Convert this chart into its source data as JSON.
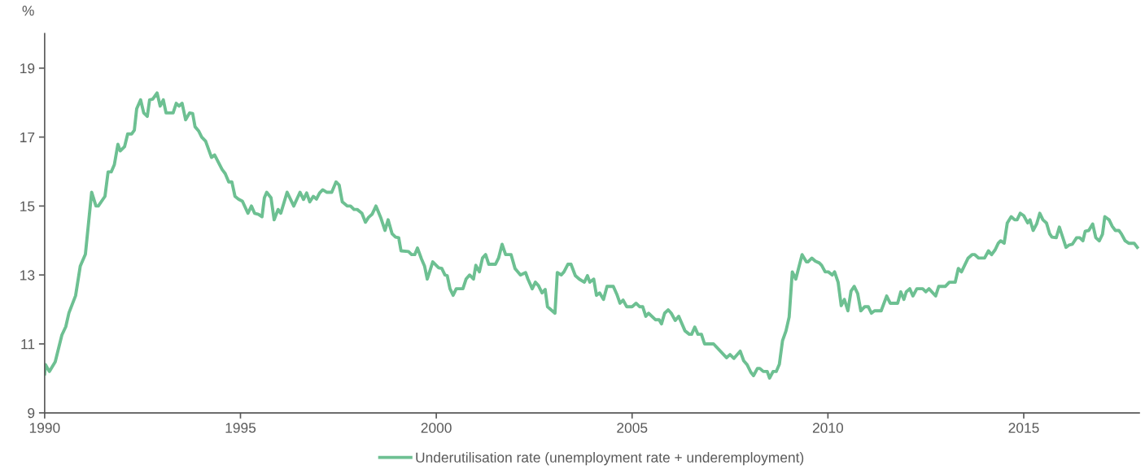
{
  "chart_data": {
    "type": "line",
    "ylabel": "%",
    "xlim": [
      1990,
      2017.95
    ],
    "xticks": [
      1990,
      1995,
      2000,
      2005,
      2010,
      2015
    ],
    "ylim": [
      9,
      20
    ],
    "yticks": [
      9,
      11,
      13,
      15,
      17,
      19
    ],
    "grid": false,
    "legend": "bottom",
    "marker": "none",
    "line_style": "solid",
    "series": [
      {
        "name": "Underutilisation rate (unemployment rate + underemployment)",
        "color": "#6dc092",
        "x": [
          1990.0,
          1990.02,
          1990.12,
          1990.27,
          1990.44,
          1990.54,
          1990.62,
          1990.79,
          1990.91,
          1991.04,
          1991.2,
          1991.31,
          1991.37,
          1991.54,
          1991.62,
          1991.7,
          1991.78,
          1991.87,
          1991.93,
          1992.04,
          1992.12,
          1992.22,
          1992.29,
          1992.35,
          1992.45,
          1992.53,
          1992.62,
          1992.68,
          1992.76,
          1992.87,
          1992.95,
          1993.03,
          1993.1,
          1993.28,
          1993.36,
          1993.43,
          1993.51,
          1993.6,
          1993.7,
          1993.78,
          1993.84,
          1993.93,
          1994.01,
          1994.11,
          1994.26,
          1994.34,
          1994.53,
          1994.61,
          1994.7,
          1994.78,
          1994.86,
          1994.95,
          1995.05,
          1995.19,
          1995.28,
          1995.36,
          1995.46,
          1995.55,
          1995.61,
          1995.67,
          1995.78,
          1995.86,
          1995.96,
          1996.03,
          1996.19,
          1996.36,
          1996.52,
          1996.61,
          1996.69,
          1996.77,
          1996.86,
          1996.94,
          1997.02,
          1997.1,
          1997.2,
          1997.33,
          1997.44,
          1997.52,
          1997.6,
          1997.73,
          1997.81,
          1997.9,
          1997.98,
          1998.1,
          1998.19,
          1998.27,
          1998.36,
          1998.46,
          1998.58,
          1998.69,
          1998.77,
          1998.87,
          1998.96,
          1999.04,
          1999.1,
          1999.29,
          1999.37,
          1999.45,
          1999.52,
          1999.62,
          1999.7,
          1999.77,
          1999.91,
          2000.06,
          2000.14,
          2000.22,
          2000.28,
          2000.35,
          2000.43,
          2000.51,
          2000.68,
          2000.76,
          2000.85,
          2000.95,
          2001.01,
          2001.1,
          2001.18,
          2001.26,
          2001.34,
          2001.51,
          2001.59,
          2001.68,
          2001.77,
          2001.91,
          2002.01,
          2002.15,
          2002.28,
          2002.34,
          2002.45,
          2002.53,
          2002.61,
          2002.7,
          2002.78,
          2002.84,
          2003.03,
          2003.09,
          2003.19,
          2003.26,
          2003.36,
          2003.44,
          2003.55,
          2003.65,
          2003.78,
          2003.86,
          2003.92,
          2004.02,
          2004.09,
          2004.17,
          2004.27,
          2004.36,
          2004.52,
          2004.61,
          2004.69,
          2004.77,
          2004.86,
          2005.0,
          2005.1,
          2005.19,
          2005.27,
          2005.35,
          2005.42,
          2005.6,
          2005.69,
          2005.75,
          2005.83,
          2005.92,
          2006.0,
          2006.1,
          2006.19,
          2006.35,
          2006.46,
          2006.52,
          2006.6,
          2006.68,
          2006.77,
          2006.85,
          2007.08,
          2007.41,
          2007.5,
          2007.6,
          2007.76,
          2007.85,
          2007.94,
          2008.03,
          2008.1,
          2008.2,
          2008.26,
          2008.35,
          2008.45,
          2008.51,
          2008.6,
          2008.68,
          2008.76,
          2008.84,
          2008.93,
          2009.01,
          2009.09,
          2009.18,
          2009.34,
          2009.45,
          2009.49,
          2009.59,
          2009.68,
          2009.78,
          2009.84,
          2009.93,
          2010.01,
          2010.11,
          2010.17,
          2010.26,
          2010.34,
          2010.42,
          2010.51,
          2010.59,
          2010.67,
          2010.76,
          2010.84,
          2010.94,
          2011.03,
          2011.11,
          2011.19,
          2011.36,
          2011.5,
          2011.59,
          2011.78,
          2011.86,
          2011.94,
          2012.0,
          2012.09,
          2012.17,
          2012.27,
          2012.42,
          2012.5,
          2012.58,
          2012.75,
          2012.83,
          2013.0,
          2013.1,
          2013.25,
          2013.33,
          2013.41,
          2013.58,
          2013.68,
          2013.75,
          2013.85,
          2014.0,
          2014.1,
          2014.18,
          2014.27,
          2014.35,
          2014.41,
          2014.5,
          2014.58,
          2014.68,
          2014.77,
          2014.83,
          2014.91,
          2015.0,
          2015.1,
          2015.16,
          2015.24,
          2015.33,
          2015.41,
          2015.49,
          2015.58,
          2015.66,
          2015.72,
          2015.83,
          2015.91,
          2016.08,
          2016.16,
          2016.24,
          2016.35,
          2016.43,
          2016.51,
          2016.57,
          2016.66,
          2016.76,
          2016.84,
          2016.93,
          2017.01,
          2017.07,
          2017.18,
          2017.26,
          2017.34,
          2017.43,
          2017.49,
          2017.59,
          2017.68,
          2017.82,
          2017.9
        ],
        "values": [
          10.13,
          10.4,
          10.2,
          10.48,
          11.26,
          11.5,
          11.9,
          12.4,
          13.26,
          13.6,
          15.4,
          15.0,
          15.0,
          15.28,
          15.99,
          15.99,
          16.2,
          16.79,
          16.6,
          16.72,
          17.09,
          17.09,
          17.2,
          17.82,
          18.08,
          17.7,
          17.6,
          18.08,
          18.1,
          18.28,
          17.9,
          18.08,
          17.7,
          17.7,
          17.98,
          17.9,
          17.98,
          17.5,
          17.7,
          17.68,
          17.3,
          17.18,
          17.0,
          16.88,
          16.41,
          16.48,
          16.06,
          15.94,
          15.7,
          15.7,
          15.28,
          15.2,
          15.14,
          14.79,
          15.0,
          14.79,
          14.76,
          14.69,
          15.24,
          15.4,
          15.24,
          14.6,
          14.9,
          14.79,
          15.4,
          15.0,
          15.4,
          15.19,
          15.38,
          15.12,
          15.28,
          15.2,
          15.38,
          15.47,
          15.4,
          15.4,
          15.7,
          15.61,
          15.12,
          15.0,
          15.0,
          14.9,
          14.9,
          14.79,
          14.53,
          14.67,
          14.76,
          15.0,
          14.67,
          14.29,
          14.6,
          14.2,
          14.1,
          14.08,
          13.7,
          13.68,
          13.59,
          13.59,
          13.78,
          13.47,
          13.26,
          12.88,
          13.38,
          13.21,
          13.19,
          13.0,
          12.98,
          12.6,
          12.41,
          12.6,
          12.6,
          12.88,
          13.0,
          12.88,
          13.28,
          13.09,
          13.49,
          13.59,
          13.31,
          13.31,
          13.49,
          13.89,
          13.59,
          13.59,
          13.19,
          13.0,
          13.07,
          12.88,
          12.6,
          12.79,
          12.69,
          12.48,
          12.58,
          12.08,
          11.89,
          13.07,
          13.0,
          13.09,
          13.31,
          13.31,
          12.98,
          12.88,
          12.79,
          12.98,
          12.79,
          12.88,
          12.41,
          12.48,
          12.29,
          12.67,
          12.67,
          12.44,
          12.18,
          12.27,
          12.08,
          12.08,
          12.18,
          12.08,
          12.08,
          11.8,
          11.89,
          11.7,
          11.7,
          11.58,
          11.89,
          11.99,
          11.89,
          11.68,
          11.8,
          11.38,
          11.28,
          11.28,
          11.49,
          11.28,
          11.28,
          11.0,
          11.0,
          10.6,
          10.69,
          10.58,
          10.79,
          10.51,
          10.39,
          10.18,
          10.08,
          10.29,
          10.29,
          10.2,
          10.2,
          10.01,
          10.2,
          10.2,
          10.41,
          11.09,
          11.38,
          11.78,
          13.09,
          12.88,
          13.59,
          13.38,
          13.38,
          13.49,
          13.4,
          13.35,
          13.28,
          13.09,
          13.09,
          13.0,
          13.09,
          12.79,
          12.11,
          12.29,
          11.96,
          12.53,
          12.67,
          12.46,
          11.96,
          12.08,
          12.08,
          11.89,
          11.96,
          11.96,
          12.39,
          12.18,
          12.18,
          12.51,
          12.29,
          12.51,
          12.6,
          12.39,
          12.6,
          12.6,
          12.51,
          12.6,
          12.39,
          12.67,
          12.67,
          12.79,
          12.79,
          13.19,
          13.09,
          13.49,
          13.59,
          13.59,
          13.49,
          13.49,
          13.7,
          13.59,
          13.73,
          13.92,
          13.99,
          13.92,
          14.51,
          14.69,
          14.6,
          14.6,
          14.79,
          14.72,
          14.51,
          14.6,
          14.29,
          14.48,
          14.79,
          14.6,
          14.51,
          14.2,
          14.1,
          14.08,
          14.39,
          13.8,
          13.87,
          13.89,
          14.08,
          14.08,
          13.99,
          14.27,
          14.29,
          14.48,
          14.08,
          13.99,
          14.18,
          14.69,
          14.6,
          14.41,
          14.29,
          14.29,
          14.2,
          13.99,
          13.92,
          13.92,
          13.8
        ]
      }
    ]
  }
}
